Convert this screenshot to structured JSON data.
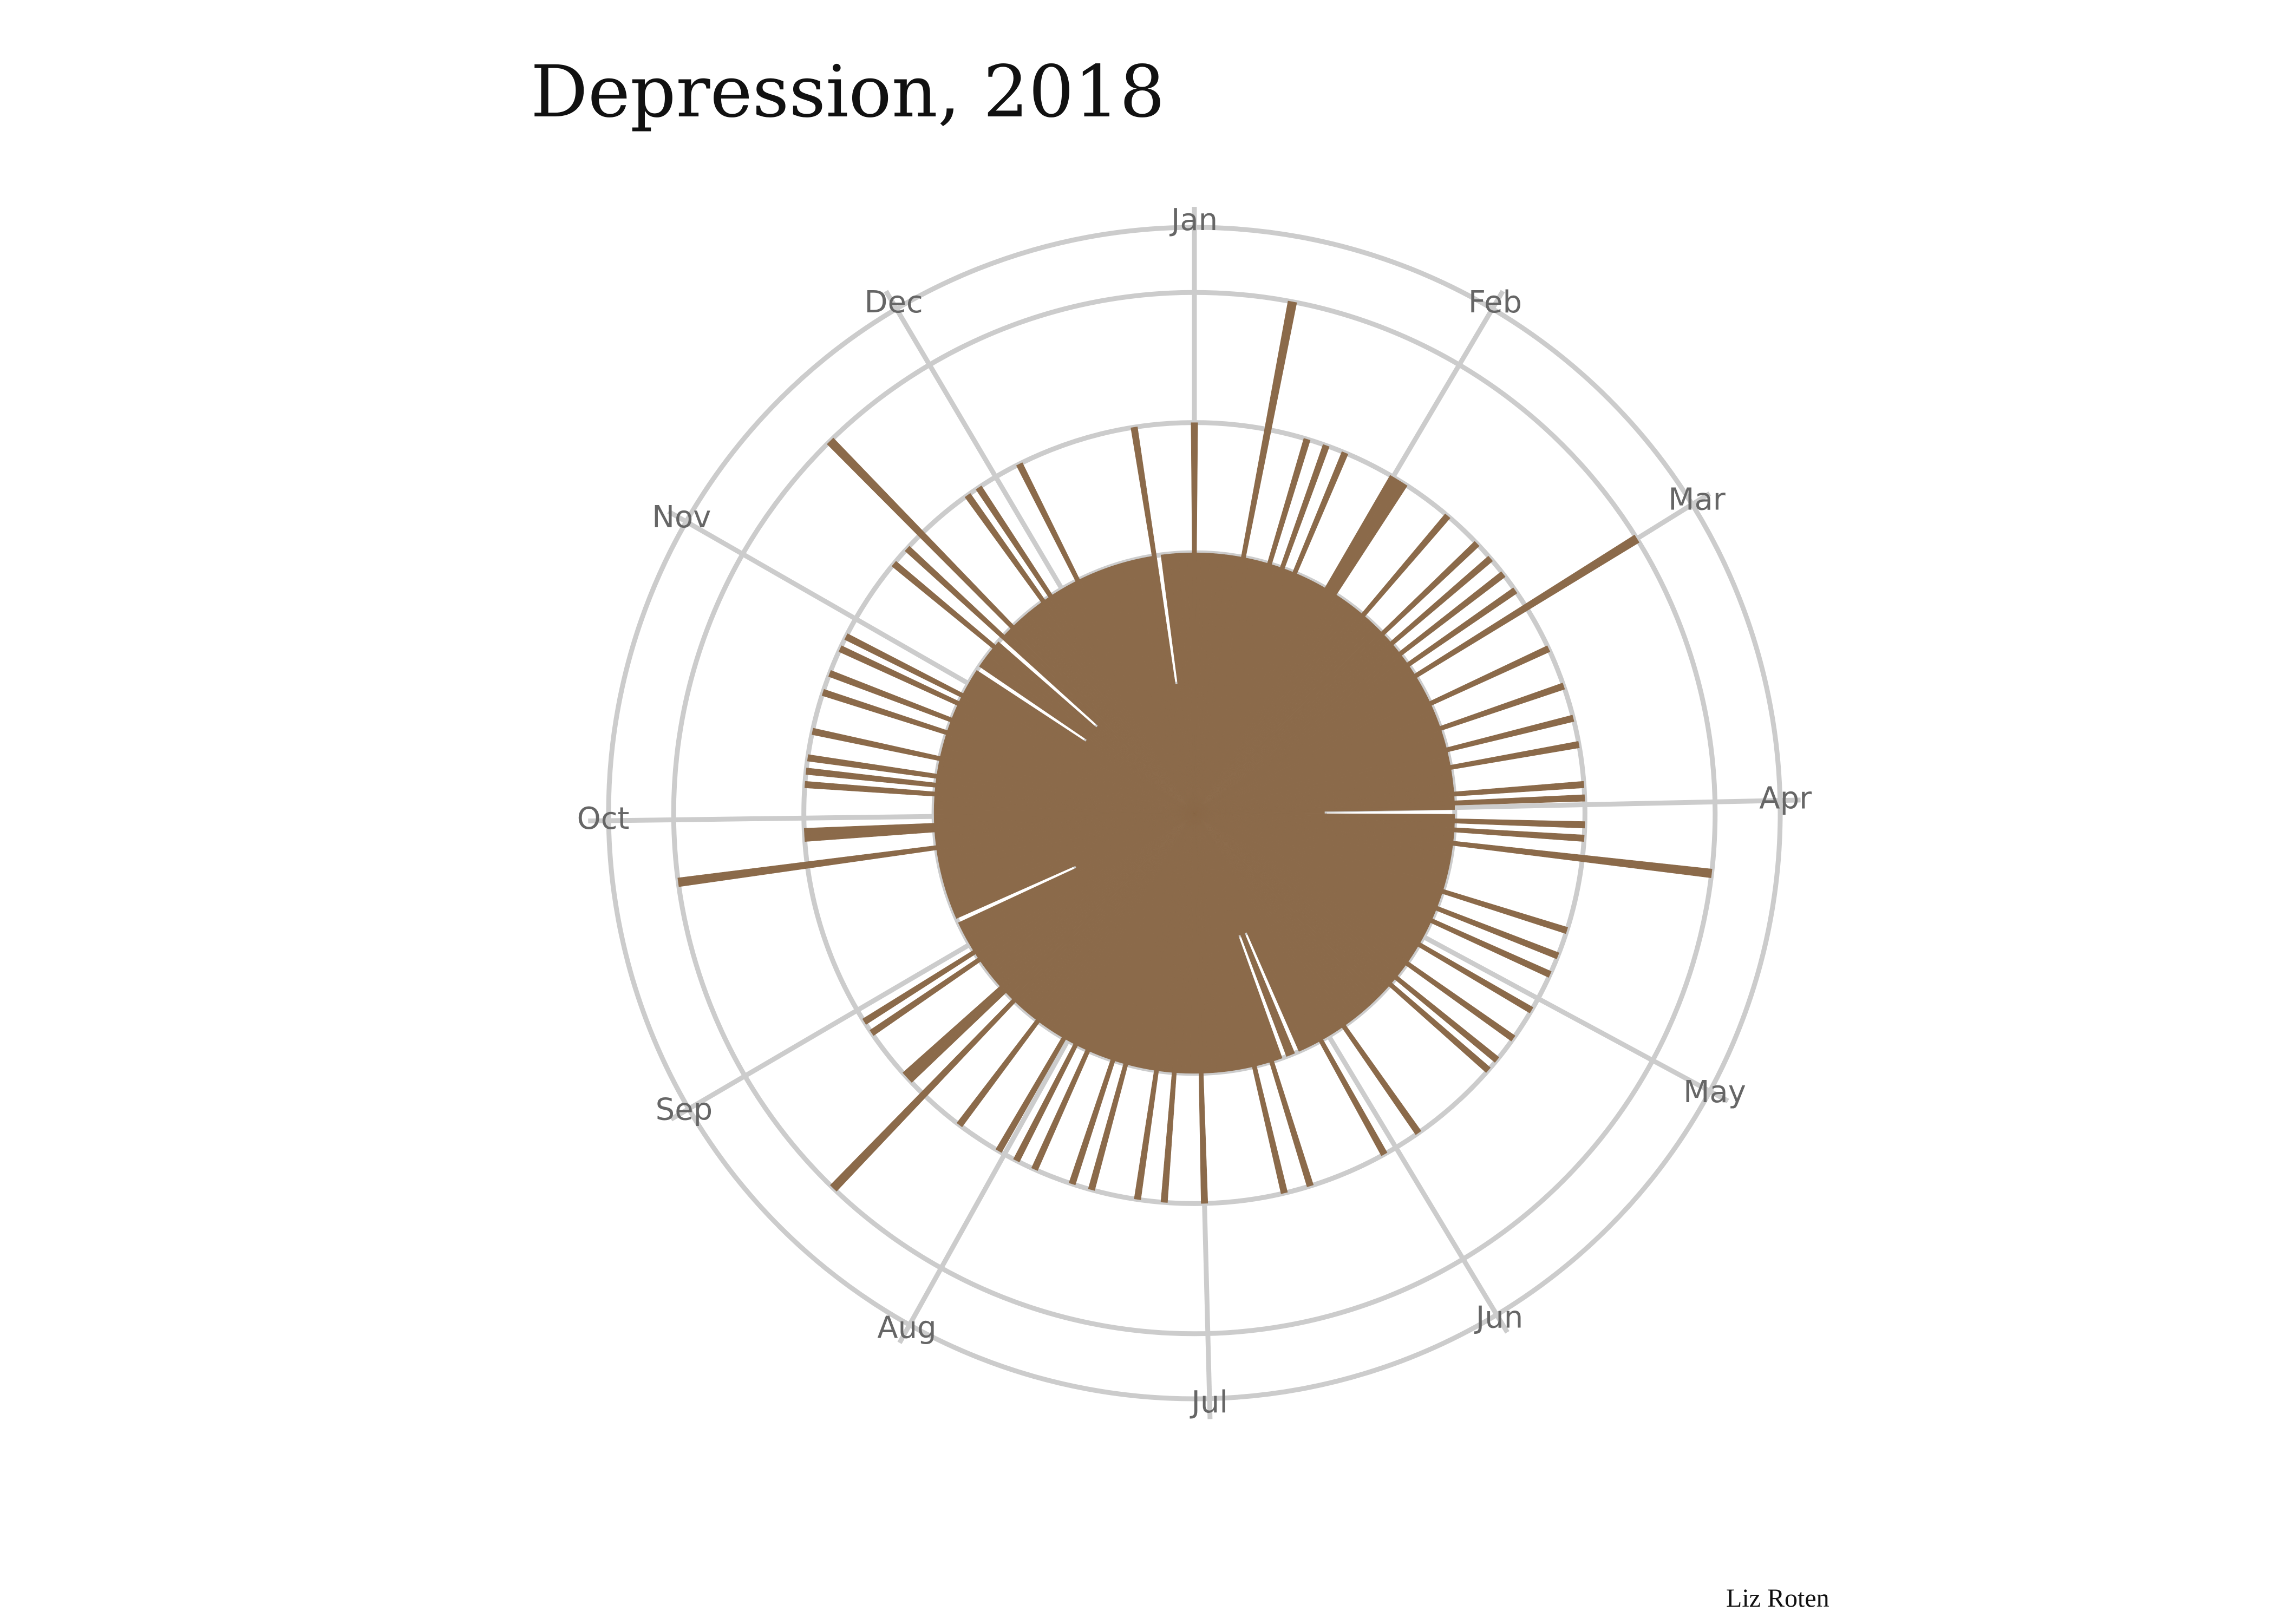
{
  "chart_data": {
    "type": "barpolar",
    "title": "Depression, 2018",
    "credit": "Liz Roten",
    "color": "#8b6a4a",
    "grid": true,
    "values": [
      3,
      2,
      2,
      2,
      2,
      2,
      2,
      2,
      2,
      2,
      2,
      4,
      2,
      2,
      2,
      2,
      2,
      3,
      2,
      2,
      3,
      2,
      2,
      3,
      2,
      2,
      2,
      2,
      2,
      2,
      2,
      3,
      3,
      3,
      2,
      2,
      2,
      2,
      2,
      2,
      2,
      3,
      2,
      2,
      2,
      2,
      2,
      3,
      2,
      2,
      3,
      2,
      2,
      3,
      2,
      2,
      3,
      2,
      2,
      4,
      2,
      2,
      2,
      2,
      2,
      2,
      3,
      2,
      2,
      2,
      2,
      2,
      3,
      2,
      2,
      2,
      2,
      3,
      2,
      2,
      2,
      3,
      2,
      2,
      2,
      2,
      2,
      3,
      2,
      3,
      2,
      1,
      2,
      3,
      2,
      3,
      2,
      2,
      4,
      2,
      2,
      2,
      2,
      2,
      2,
      2,
      2,
      2,
      2,
      3,
      2,
      2,
      2,
      3,
      2,
      2,
      3,
      2,
      2,
      2,
      2,
      2,
      3,
      2,
      2,
      2,
      2,
      3,
      2,
      2,
      2,
      3,
      2,
      3,
      2,
      2,
      2,
      2,
      2,
      2,
      2,
      2,
      2,
      2,
      2,
      2,
      2,
      3,
      2,
      2,
      2,
      2,
      2,
      3,
      2,
      2,
      2,
      2,
      2,
      1,
      2,
      2,
      1,
      2,
      2,
      3,
      2,
      2,
      2,
      3,
      2,
      2,
      2,
      2,
      2,
      2,
      2,
      2,
      2,
      2,
      2,
      3,
      2,
      2,
      2,
      2,
      2,
      3,
      2,
      2,
      2,
      3,
      2,
      2,
      2,
      2,
      2,
      2,
      3,
      2,
      2,
      3,
      2,
      2,
      2,
      2,
      2,
      3,
      2,
      2,
      3,
      2,
      2,
      3,
      2,
      2,
      2,
      2,
      2,
      2,
      3,
      2,
      2,
      2,
      2,
      2,
      2,
      4,
      2,
      2,
      3,
      3,
      2,
      2,
      2,
      2,
      2,
      2,
      2,
      3,
      2,
      3,
      2,
      2,
      2,
      2,
      2,
      2,
      2,
      1,
      2,
      2,
      2,
      2,
      2,
      2,
      2,
      2,
      2,
      2,
      2,
      2,
      2,
      2,
      2,
      2,
      4,
      2,
      2,
      2,
      3,
      3,
      2,
      2,
      2,
      2,
      2,
      2,
      3,
      2,
      3,
      2,
      3,
      2,
      2,
      2,
      3,
      2,
      2,
      2,
      2,
      2,
      3,
      2,
      2,
      3,
      2,
      2,
      2,
      3,
      2,
      3,
      2,
      2,
      2,
      2,
      2,
      2,
      1,
      2,
      2,
      2,
      2,
      2,
      3,
      2,
      1,
      3,
      2,
      2,
      4,
      2,
      2,
      2,
      2,
      2,
      2,
      2,
      2,
      3,
      2,
      3,
      2,
      2,
      2,
      2,
      2,
      2,
      3,
      2,
      2,
      2,
      2,
      2,
      2,
      2,
      2,
      2,
      2,
      2,
      2,
      2,
      2,
      2,
      2,
      2,
      3,
      1,
      2,
      2,
      2,
      2,
      2,
      2,
      2
    ],
    "xticks": [
      {
        "value": 0,
        "label": "Jan"
      },
      {
        "value": 31,
        "label": "Feb"
      },
      {
        "value": 59,
        "label": "Mar"
      },
      {
        "value": 90,
        "label": "Apr"
      },
      {
        "value": 120,
        "label": "May"
      },
      {
        "value": 151,
        "label": "Jun"
      },
      {
        "value": 181,
        "label": "Jul"
      },
      {
        "value": 212,
        "label": "Aug"
      },
      {
        "value": 243,
        "label": "Sep"
      },
      {
        "value": 273,
        "label": "Oct"
      },
      {
        "value": 304,
        "label": "Nov"
      },
      {
        "value": 334,
        "label": "Dec"
      }
    ],
    "xlim": [
      0,
      365
    ],
    "rlim": [
      0,
      4.5
    ],
    "rticks": [
      1,
      2,
      3,
      4
    ]
  }
}
